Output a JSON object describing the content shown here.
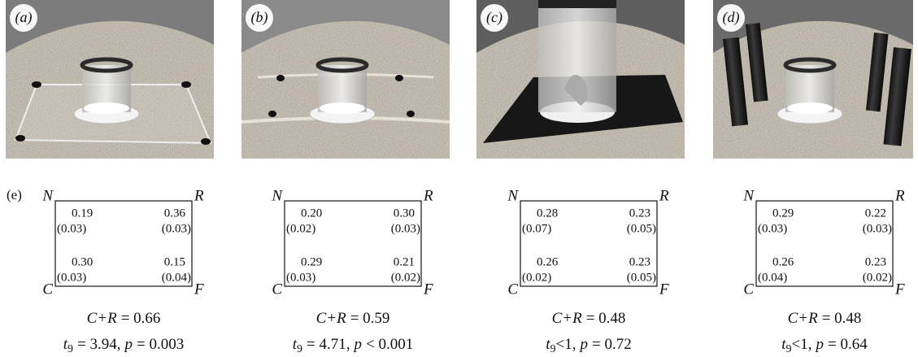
{
  "figure": {
    "panel_e_label": "(e)",
    "panels": [
      {
        "label": "(a)",
        "corners": {
          "N": "N",
          "R": "R",
          "C": "C",
          "F": "F"
        },
        "cells": {
          "N": {
            "mean": "0.19",
            "se": "(0.03)"
          },
          "R": {
            "mean": "0.36",
            "se": "(0.03)"
          },
          "C": {
            "mean": "0.30",
            "se": "(0.03)"
          },
          "F": {
            "mean": "0.15",
            "se": "(0.04)"
          }
        },
        "sum": {
          "expr": "C+R",
          "value": "= 0.66"
        },
        "test": {
          "t": "t",
          "df": "9",
          "t_part": "= 3.94,",
          "p": "p",
          "p_part": "= 0.003"
        }
      },
      {
        "label": "(b)",
        "corners": {
          "N": "N",
          "R": "R",
          "C": "C",
          "F": "F"
        },
        "cells": {
          "N": {
            "mean": "0.20",
            "se": "(0.02)"
          },
          "R": {
            "mean": "0.30",
            "se": "(0.03)"
          },
          "C": {
            "mean": "0.29",
            "se": "(0.03)"
          },
          "F": {
            "mean": "0.21",
            "se": "(0.02)"
          }
        },
        "sum": {
          "expr": "C+R",
          "value": "= 0.59"
        },
        "test": {
          "t": "t",
          "df": "9",
          "t_part": "= 4.71,",
          "p": "p",
          "p_part": "< 0.001"
        }
      },
      {
        "label": "(c)",
        "corners": {
          "N": "N",
          "R": "R",
          "C": "C",
          "F": "F"
        },
        "cells": {
          "N": {
            "mean": "0.28",
            "se": "(0.07)"
          },
          "R": {
            "mean": "0.23",
            "se": "(0.05)"
          },
          "C": {
            "mean": "0.26",
            "se": "(0.02)"
          },
          "F": {
            "mean": "0.23",
            "se": "(0.05)"
          }
        },
        "sum": {
          "expr": "C+R",
          "value": "= 0.48"
        },
        "test": {
          "t": "t",
          "df": "9",
          "t_part": "<1,",
          "p": "p",
          "p_part": "= 0.72"
        }
      },
      {
        "label": "(d)",
        "corners": {
          "N": "N",
          "R": "R",
          "C": "C",
          "F": "F"
        },
        "cells": {
          "N": {
            "mean": "0.29",
            "se": "(0.03)"
          },
          "R": {
            "mean": "0.22",
            "se": "(0.03)"
          },
          "C": {
            "mean": "0.26",
            "se": "(0.04)"
          },
          "F": {
            "mean": "0.23",
            "se": "(0.02)"
          }
        },
        "sum": {
          "expr": "C+R",
          "value": "= 0.48"
        },
        "test": {
          "t": "t",
          "df": "9",
          "t_part": "<1,",
          "p": "p",
          "p_part": "= 0.64"
        }
      }
    ]
  }
}
